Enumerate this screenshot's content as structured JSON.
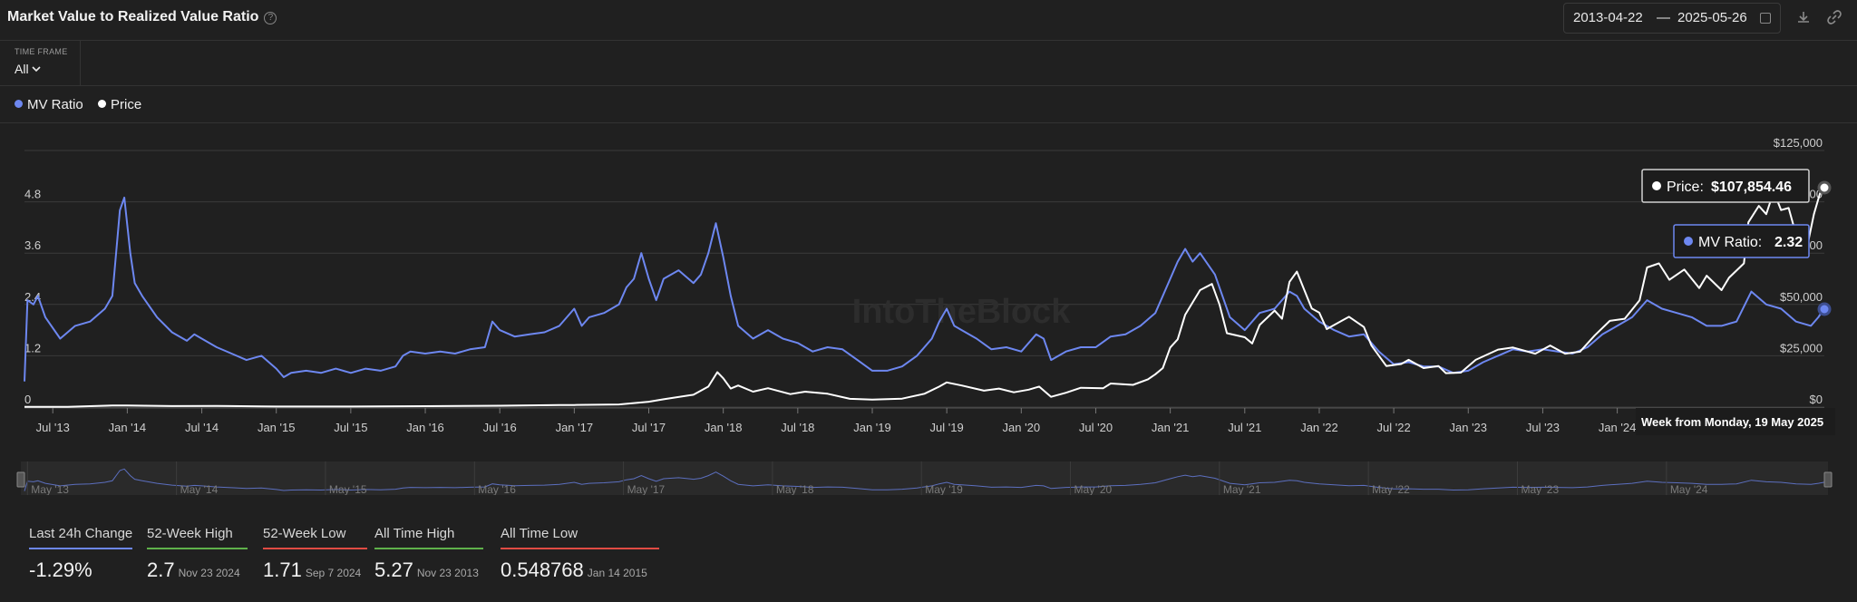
{
  "header": {
    "title": "Market Value to Realized Value Ratio",
    "date_start": "2013-04-22",
    "date_sep": "—",
    "date_end": "2025-05-26"
  },
  "timeframe": {
    "label": "TIME FRAME",
    "value": "All"
  },
  "legend": [
    {
      "name": "MV Ratio",
      "color": "#6d87f0"
    },
    {
      "name": "Price",
      "color": "#ffffff"
    }
  ],
  "tooltip": {
    "price_label": "Price:",
    "price_value": "$107,854.46",
    "ratio_label": "MV Ratio:",
    "ratio_value": "2.32",
    "week_label": "Week from Monday, 19 May 2025"
  },
  "watermark": "IntoTheBlock",
  "chart_data": {
    "type": "line",
    "x_tick_labels": [
      "Jul '13",
      "Jan '14",
      "Jul '14",
      "Jan '15",
      "Jul '15",
      "Jan '16",
      "Jul '16",
      "Jan '17",
      "Jul '17",
      "Jan '18",
      "Jul '18",
      "Jan '19",
      "Jul '19",
      "Jan '20",
      "Jul '20",
      "Jan '21",
      "Jul '21",
      "Jan '22",
      "Jul '22",
      "Jan '23",
      "Jul '23",
      "Jan '24"
    ],
    "y_left_ticks": [
      "0",
      "1.2",
      "2.4",
      "3.6",
      "4.8"
    ],
    "y_left_range": [
      0,
      6
    ],
    "y_right_ticks": [
      "$0",
      "$25,000",
      "$50,000",
      "$75,000",
      "$100,000",
      "$125,000"
    ],
    "y_right_range": [
      0,
      125000
    ],
    "navigator_labels": [
      "May '13",
      "May '14",
      "May '15",
      "May '16",
      "May '17",
      "May '18",
      "May '19",
      "May '20",
      "May '21",
      "May '22",
      "May '23",
      "May '24"
    ],
    "series": [
      {
        "name": "MV Ratio",
        "color": "#6d87f0",
        "axis": "left",
        "points": [
          [
            2013.31,
            0.6
          ],
          [
            2013.33,
            2.5
          ],
          [
            2013.37,
            2.4
          ],
          [
            2013.4,
            2.6
          ],
          [
            2013.45,
            2.1
          ],
          [
            2013.55,
            1.6
          ],
          [
            2013.65,
            1.9
          ],
          [
            2013.75,
            2.0
          ],
          [
            2013.85,
            2.3
          ],
          [
            2013.9,
            2.6
          ],
          [
            2013.95,
            4.6
          ],
          [
            2013.98,
            4.9
          ],
          [
            2014.02,
            3.6
          ],
          [
            2014.05,
            2.9
          ],
          [
            2014.1,
            2.6
          ],
          [
            2014.2,
            2.1
          ],
          [
            2014.3,
            1.75
          ],
          [
            2014.4,
            1.55
          ],
          [
            2014.45,
            1.7
          ],
          [
            2014.5,
            1.6
          ],
          [
            2014.6,
            1.4
          ],
          [
            2014.7,
            1.25
          ],
          [
            2014.8,
            1.1
          ],
          [
            2014.9,
            1.2
          ],
          [
            2015.0,
            0.9
          ],
          [
            2015.05,
            0.7
          ],
          [
            2015.1,
            0.8
          ],
          [
            2015.2,
            0.85
          ],
          [
            2015.3,
            0.8
          ],
          [
            2015.4,
            0.9
          ],
          [
            2015.5,
            0.8
          ],
          [
            2015.6,
            0.9
          ],
          [
            2015.7,
            0.85
          ],
          [
            2015.8,
            0.95
          ],
          [
            2015.85,
            1.2
          ],
          [
            2015.9,
            1.3
          ],
          [
            2016.0,
            1.25
          ],
          [
            2016.1,
            1.3
          ],
          [
            2016.2,
            1.25
          ],
          [
            2016.3,
            1.35
          ],
          [
            2016.4,
            1.4
          ],
          [
            2016.45,
            2.0
          ],
          [
            2016.5,
            1.8
          ],
          [
            2016.6,
            1.65
          ],
          [
            2016.7,
            1.7
          ],
          [
            2016.8,
            1.75
          ],
          [
            2016.9,
            1.9
          ],
          [
            2017.0,
            2.3
          ],
          [
            2017.05,
            1.9
          ],
          [
            2017.1,
            2.1
          ],
          [
            2017.2,
            2.2
          ],
          [
            2017.3,
            2.4
          ],
          [
            2017.35,
            2.8
          ],
          [
            2017.4,
            3.0
          ],
          [
            2017.45,
            3.6
          ],
          [
            2017.5,
            3.0
          ],
          [
            2017.55,
            2.5
          ],
          [
            2017.6,
            3.0
          ],
          [
            2017.7,
            3.2
          ],
          [
            2017.8,
            2.9
          ],
          [
            2017.85,
            3.1
          ],
          [
            2017.9,
            3.6
          ],
          [
            2017.95,
            4.3
          ],
          [
            2018.0,
            3.5
          ],
          [
            2018.05,
            2.6
          ],
          [
            2018.1,
            1.9
          ],
          [
            2018.2,
            1.6
          ],
          [
            2018.3,
            1.8
          ],
          [
            2018.4,
            1.6
          ],
          [
            2018.5,
            1.5
          ],
          [
            2018.6,
            1.3
          ],
          [
            2018.7,
            1.4
          ],
          [
            2018.8,
            1.35
          ],
          [
            2018.9,
            1.1
          ],
          [
            2019.0,
            0.85
          ],
          [
            2019.1,
            0.85
          ],
          [
            2019.2,
            0.95
          ],
          [
            2019.3,
            1.2
          ],
          [
            2019.4,
            1.6
          ],
          [
            2019.45,
            2.0
          ],
          [
            2019.5,
            2.3
          ],
          [
            2019.55,
            1.9
          ],
          [
            2019.6,
            1.8
          ],
          [
            2019.7,
            1.6
          ],
          [
            2019.8,
            1.35
          ],
          [
            2019.9,
            1.4
          ],
          [
            2020.0,
            1.3
          ],
          [
            2020.1,
            1.7
          ],
          [
            2020.15,
            1.6
          ],
          [
            2020.2,
            1.1
          ],
          [
            2020.3,
            1.3
          ],
          [
            2020.4,
            1.4
          ],
          [
            2020.5,
            1.4
          ],
          [
            2020.6,
            1.65
          ],
          [
            2020.7,
            1.7
          ],
          [
            2020.8,
            1.9
          ],
          [
            2020.9,
            2.2
          ],
          [
            2021.0,
            3.0
          ],
          [
            2021.05,
            3.4
          ],
          [
            2021.1,
            3.7
          ],
          [
            2021.15,
            3.4
          ],
          [
            2021.2,
            3.6
          ],
          [
            2021.3,
            3.1
          ],
          [
            2021.4,
            2.1
          ],
          [
            2021.5,
            1.8
          ],
          [
            2021.6,
            2.2
          ],
          [
            2021.7,
            2.3
          ],
          [
            2021.8,
            2.7
          ],
          [
            2021.85,
            2.6
          ],
          [
            2021.9,
            2.3
          ],
          [
            2022.0,
            2.0
          ],
          [
            2022.1,
            1.8
          ],
          [
            2022.2,
            1.65
          ],
          [
            2022.3,
            1.7
          ],
          [
            2022.4,
            1.3
          ],
          [
            2022.5,
            1.0
          ],
          [
            2022.6,
            1.05
          ],
          [
            2022.7,
            0.95
          ],
          [
            2022.8,
            0.95
          ],
          [
            2022.9,
            0.8
          ],
          [
            2023.0,
            0.85
          ],
          [
            2023.1,
            1.05
          ],
          [
            2023.2,
            1.2
          ],
          [
            2023.3,
            1.35
          ],
          [
            2023.4,
            1.3
          ],
          [
            2023.5,
            1.35
          ],
          [
            2023.6,
            1.3
          ],
          [
            2023.7,
            1.25
          ],
          [
            2023.8,
            1.4
          ],
          [
            2023.9,
            1.7
          ],
          [
            2024.0,
            1.9
          ],
          [
            2024.1,
            2.1
          ],
          [
            2024.2,
            2.5
          ],
          [
            2024.3,
            2.3
          ],
          [
            2024.4,
            2.2
          ],
          [
            2024.5,
            2.1
          ],
          [
            2024.6,
            1.9
          ],
          [
            2024.7,
            1.9
          ],
          [
            2024.8,
            2.0
          ],
          [
            2024.9,
            2.7
          ],
          [
            2025.0,
            2.4
          ],
          [
            2025.1,
            2.3
          ],
          [
            2025.2,
            2.0
          ],
          [
            2025.3,
            1.9
          ],
          [
            2025.35,
            2.1
          ],
          [
            2025.39,
            2.32
          ]
        ]
      },
      {
        "name": "Price",
        "color": "#ffffff",
        "axis": "right",
        "points": [
          [
            2013.31,
            120
          ],
          [
            2013.6,
            100
          ],
          [
            2013.9,
            800
          ],
          [
            2014.0,
            750
          ],
          [
            2014.3,
            500
          ],
          [
            2014.6,
            550
          ],
          [
            2014.9,
            350
          ],
          [
            2015.0,
            250
          ],
          [
            2015.5,
            260
          ],
          [
            2016.0,
            430
          ],
          [
            2016.5,
            650
          ],
          [
            2016.9,
            950
          ],
          [
            2017.0,
            1000
          ],
          [
            2017.3,
            1300
          ],
          [
            2017.5,
            2600
          ],
          [
            2017.6,
            3800
          ],
          [
            2017.8,
            6000
          ],
          [
            2017.9,
            10000
          ],
          [
            2017.96,
            17000
          ],
          [
            2018.0,
            14000
          ],
          [
            2018.05,
            9000
          ],
          [
            2018.1,
            10500
          ],
          [
            2018.2,
            7500
          ],
          [
            2018.3,
            9200
          ],
          [
            2018.45,
            6300
          ],
          [
            2018.55,
            7500
          ],
          [
            2018.7,
            6500
          ],
          [
            2018.85,
            4000
          ],
          [
            2019.0,
            3600
          ],
          [
            2019.2,
            4100
          ],
          [
            2019.35,
            6500
          ],
          [
            2019.45,
            10000
          ],
          [
            2019.5,
            12000
          ],
          [
            2019.6,
            10500
          ],
          [
            2019.75,
            8000
          ],
          [
            2019.85,
            9000
          ],
          [
            2019.95,
            7200
          ],
          [
            2020.05,
            8500
          ],
          [
            2020.12,
            10000
          ],
          [
            2020.2,
            5000
          ],
          [
            2020.3,
            7000
          ],
          [
            2020.4,
            9400
          ],
          [
            2020.55,
            9200
          ],
          [
            2020.6,
            11500
          ],
          [
            2020.75,
            10800
          ],
          [
            2020.85,
            13500
          ],
          [
            2020.9,
            16000
          ],
          [
            2020.95,
            19000
          ],
          [
            2021.0,
            29000
          ],
          [
            2021.05,
            33000
          ],
          [
            2021.1,
            45000
          ],
          [
            2021.2,
            57000
          ],
          [
            2021.28,
            60000
          ],
          [
            2021.33,
            50000
          ],
          [
            2021.38,
            36000
          ],
          [
            2021.5,
            34000
          ],
          [
            2021.55,
            31000
          ],
          [
            2021.6,
            40000
          ],
          [
            2021.7,
            47000
          ],
          [
            2021.75,
            43000
          ],
          [
            2021.8,
            61000
          ],
          [
            2021.85,
            66000
          ],
          [
            2021.9,
            57000
          ],
          [
            2021.95,
            48000
          ],
          [
            2022.0,
            46000
          ],
          [
            2022.05,
            38000
          ],
          [
            2022.15,
            42000
          ],
          [
            2022.2,
            44000
          ],
          [
            2022.3,
            39000
          ],
          [
            2022.35,
            30000
          ],
          [
            2022.45,
            20000
          ],
          [
            2022.55,
            21000
          ],
          [
            2022.6,
            23000
          ],
          [
            2022.7,
            19000
          ],
          [
            2022.8,
            20000
          ],
          [
            2022.85,
            16500
          ],
          [
            2022.95,
            16800
          ],
          [
            2023.05,
            23000
          ],
          [
            2023.2,
            28000
          ],
          [
            2023.3,
            29000
          ],
          [
            2023.45,
            26000
          ],
          [
            2023.55,
            30000
          ],
          [
            2023.65,
            26000
          ],
          [
            2023.75,
            27000
          ],
          [
            2023.85,
            35000
          ],
          [
            2023.95,
            42000
          ],
          [
            2024.05,
            43000
          ],
          [
            2024.15,
            52000
          ],
          [
            2024.2,
            68000
          ],
          [
            2024.28,
            70000
          ],
          [
            2024.35,
            62000
          ],
          [
            2024.45,
            67000
          ],
          [
            2024.55,
            58000
          ],
          [
            2024.6,
            64000
          ],
          [
            2024.7,
            57000
          ],
          [
            2024.75,
            63000
          ],
          [
            2024.85,
            70000
          ],
          [
            2024.88,
            90000
          ],
          [
            2024.95,
            98000
          ],
          [
            2025.0,
            94000
          ],
          [
            2025.05,
            105000
          ],
          [
            2025.1,
            96000
          ],
          [
            2025.15,
            97000
          ],
          [
            2025.2,
            84000
          ],
          [
            2025.28,
            80000
          ],
          [
            2025.32,
            94000
          ],
          [
            2025.36,
            104000
          ],
          [
            2025.39,
            107854.46
          ]
        ]
      }
    ]
  },
  "stats": [
    {
      "label": "Last 24h Change",
      "value": "-1.29%",
      "date": "",
      "color": "#6d87f0"
    },
    {
      "label": "52-Week High",
      "value": "2.7",
      "date": "Nov 23 2024",
      "color": "#5fb14a"
    },
    {
      "label": "52-Week Low",
      "value": "1.71",
      "date": "Sep 7 2024",
      "color": "#e04b43"
    },
    {
      "label": "All Time High",
      "value": "5.27",
      "date": "Nov 23 2013",
      "color": "#5fb14a"
    },
    {
      "label": "All Time Low",
      "value": "0.548768",
      "date": "Jan 14 2015",
      "color": "#e04b43"
    }
  ]
}
